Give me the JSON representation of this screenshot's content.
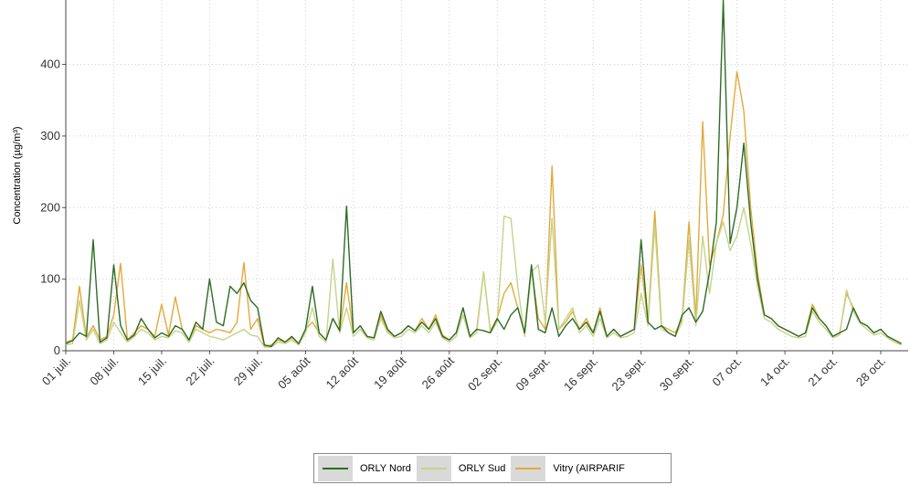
{
  "chart_data": {
    "type": "line",
    "title": "",
    "xlabel": "",
    "ylabel": "Concentration (µg/m³)",
    "ylim": [
      0,
      490
    ],
    "yticks": [
      0,
      100,
      200,
      300,
      400
    ],
    "xlim_days": [
      0,
      123
    ],
    "xtick_labels": [
      "01 juil.",
      "08 juil.",
      "15 juil.",
      "22 juil.",
      "29 juil.",
      "05 août",
      "12 août",
      "19 août",
      "26 août",
      "02 sept.",
      "09 sept.",
      "16 sept.",
      "23 sept.",
      "30 sept.",
      "07 oct.",
      "14 oct.",
      "21 oct.",
      "28 oct."
    ],
    "grid": true,
    "legend_position": "bottom",
    "series": [
      {
        "name": "ORLY Nord",
        "color": "#2e6b26",
        "x": [
          "01 juil.",
          "02 juil.",
          "03 juil.",
          "04 juil.",
          "05 juil.",
          "06 juil.",
          "07 juil.",
          "08 juil.",
          "09 juil.",
          "10 juil.",
          "11 juil.",
          "12 juil.",
          "13 juil.",
          "14 juil.",
          "15 juil.",
          "16 juil.",
          "17 juil.",
          "18 juil.",
          "19 juil.",
          "20 juil.",
          "21 juil.",
          "22 juil.",
          "23 juil.",
          "24 juil.",
          "25 juil.",
          "26 juil.",
          "27 juil.",
          "28 juil.",
          "29 juil.",
          "30 juil.",
          "31 juil.",
          "01 août",
          "02 août",
          "03 août",
          "04 août",
          "05 août",
          "06 août",
          "07 août",
          "08 août",
          "09 août",
          "10 août",
          "11 août",
          "12 août",
          "13 août",
          "14 août",
          "15 août",
          "16 août",
          "17 août",
          "18 août",
          "19 août",
          "20 août",
          "21 août",
          "22 août",
          "23 août",
          "24 août",
          "25 août",
          "26 août",
          "27 août",
          "28 août",
          "29 août",
          "30 août",
          "31 août",
          "01 sept.",
          "02 sept.",
          "03 sept.",
          "04 sept.",
          "05 sept.",
          "06 sept.",
          "07 sept.",
          "08 sept.",
          "09 sept.",
          "10 sept.",
          "11 sept.",
          "12 sept.",
          "13 sept.",
          "14 sept.",
          "15 sept.",
          "16 sept.",
          "17 sept.",
          "18 sept.",
          "19 sept.",
          "20 sept.",
          "21 sept.",
          "22 sept.",
          "23 sept.",
          "24 sept.",
          "25 sept.",
          "26 sept.",
          "27 sept.",
          "28 sept.",
          "29 sept.",
          "30 sept.",
          "01 oct.",
          "02 oct.",
          "03 oct.",
          "04 oct.",
          "05 oct.",
          "06 oct.",
          "07 oct.",
          "08 oct.",
          "09 oct.",
          "10 oct.",
          "11 oct.",
          "12 oct.",
          "13 oct.",
          "14 oct.",
          "15 oct.",
          "16 oct.",
          "17 oct.",
          "18 oct.",
          "19 oct.",
          "20 oct.",
          "21 oct.",
          "22 oct.",
          "23 oct.",
          "24 oct.",
          "25 oct.",
          "26 oct.",
          "27 oct.",
          "28 oct.",
          "29 oct.",
          "30 oct.",
          "31 oct."
        ],
        "values": [
          10,
          14,
          25,
          20,
          155,
          12,
          18,
          120,
          35,
          15,
          22,
          45,
          30,
          18,
          25,
          20,
          35,
          30,
          15,
          40,
          30,
          100,
          40,
          35,
          90,
          80,
          95,
          70,
          60,
          8,
          6,
          18,
          12,
          20,
          10,
          30,
          90,
          25,
          15,
          45,
          28,
          202,
          25,
          35,
          20,
          18,
          55,
          30,
          20,
          25,
          35,
          28,
          40,
          30,
          45,
          20,
          15,
          25,
          60,
          20,
          30,
          28,
          25,
          45,
          30,
          50,
          60,
          25,
          120,
          30,
          25,
          60,
          20,
          35,
          45,
          30,
          40,
          25,
          55,
          20,
          30,
          20,
          25,
          30,
          155,
          40,
          30,
          35,
          25,
          20,
          50,
          60,
          40,
          55,
          110,
          180,
          490,
          150,
          200,
          290,
          180,
          100,
          50,
          45,
          35,
          30,
          25,
          20,
          25,
          60,
          45,
          35,
          20,
          25,
          30,
          60,
          40,
          35,
          25,
          30,
          20,
          15,
          10
        ]
      },
      {
        "name": "ORLY Sud",
        "color": "#c4d48a",
        "x": [
          "01 juil.",
          "02 juil.",
          "03 juil.",
          "04 juil.",
          "05 juil.",
          "06 juil.",
          "07 juil.",
          "08 juil.",
          "09 juil.",
          "10 juil.",
          "11 juil.",
          "12 juil.",
          "13 juil.",
          "14 juil.",
          "15 juil.",
          "16 juil.",
          "17 juil.",
          "18 juil.",
          "19 juil.",
          "20 juil.",
          "21 juil.",
          "22 juil.",
          "23 juil.",
          "24 juil.",
          "25 juil.",
          "26 juil.",
          "27 juil.",
          "28 juil.",
          "29 juil.",
          "30 juil.",
          "31 juil.",
          "01 août",
          "02 août",
          "03 août",
          "04 août",
          "05 août",
          "06 août",
          "07 août",
          "08 août",
          "09 août",
          "10 août",
          "11 août",
          "12 août",
          "13 août",
          "14 août",
          "15 août",
          "16 août",
          "17 août",
          "18 août",
          "19 août",
          "20 août",
          "21 août",
          "22 août",
          "23 août",
          "24 août",
          "25 août",
          "26 août",
          "27 août",
          "28 août",
          "29 août",
          "30 août",
          "31 août",
          "01 sept.",
          "02 sept.",
          "03 sept.",
          "04 sept.",
          "05 sept.",
          "06 sept.",
          "07 sept.",
          "08 sept.",
          "09 sept.",
          "10 sept.",
          "11 sept.",
          "12 sept.",
          "13 sept.",
          "14 sept.",
          "15 sept.",
          "16 sept.",
          "17 sept.",
          "18 sept.",
          "19 sept.",
          "20 sept.",
          "21 sept.",
          "22 sept.",
          "23 sept.",
          "24 sept.",
          "25 sept.",
          "26 sept.",
          "27 sept.",
          "28 sept.",
          "29 sept.",
          "30 sept.",
          "01 oct.",
          "02 oct.",
          "03 oct.",
          "04 oct.",
          "05 oct.",
          "06 oct.",
          "07 oct.",
          "08 oct.",
          "09 oct.",
          "10 oct.",
          "11 oct.",
          "12 oct.",
          "13 oct.",
          "14 oct.",
          "15 oct.",
          "16 oct.",
          "17 oct.",
          "18 oct.",
          "19 oct.",
          "20 oct.",
          "21 oct.",
          "22 oct.",
          "23 oct.",
          "24 oct.",
          "25 oct.",
          "26 oct.",
          "27 oct.",
          "28 oct.",
          "29 oct.",
          "30 oct.",
          "31 oct."
        ],
        "values": [
          8,
          10,
          70,
          15,
          30,
          10,
          15,
          40,
          25,
          12,
          20,
          30,
          25,
          15,
          20,
          18,
          28,
          25,
          12,
          30,
          25,
          20,
          18,
          15,
          20,
          25,
          30,
          22,
          20,
          5,
          5,
          12,
          10,
          15,
          8,
          25,
          60,
          20,
          12,
          128,
          25,
          60,
          20,
          30,
          18,
          15,
          45,
          25,
          18,
          20,
          30,
          25,
          35,
          25,
          40,
          18,
          12,
          20,
          50,
          18,
          25,
          110,
          25,
          40,
          188,
          185,
          90,
          20,
          110,
          120,
          40,
          185,
          30,
          45,
          60,
          25,
          35,
          20,
          45,
          18,
          25,
          18,
          20,
          25,
          80,
          35,
          175,
          30,
          25,
          20,
          40,
          155,
          35,
          160,
          80,
          150,
          180,
          140,
          160,
          200,
          150,
          90,
          45,
          40,
          30,
          25,
          20,
          18,
          20,
          55,
          40,
          30,
          18,
          22,
          85,
          55,
          38,
          30,
          22,
          25,
          18,
          12,
          8
        ]
      },
      {
        "name": "Vitry (AIRPARIF",
        "color": "#e3a93a",
        "x": [
          "01 juil.",
          "02 juil.",
          "03 juil.",
          "04 juil.",
          "05 juil.",
          "06 juil.",
          "07 juil.",
          "08 juil.",
          "09 juil.",
          "10 juil.",
          "11 juil.",
          "12 juil.",
          "13 juil.",
          "14 juil.",
          "15 juil.",
          "16 juil.",
          "17 juil.",
          "18 juil.",
          "19 juil.",
          "20 juil.",
          "21 juil.",
          "22 juil.",
          "23 juil.",
          "24 juil.",
          "25 juil.",
          "26 juil.",
          "27 juil.",
          "28 juil.",
          "29 juil.",
          "30 juil.",
          "31 juil.",
          "01 août",
          "02 août",
          "03 août",
          "04 août",
          "05 août",
          "06 août",
          "07 août",
          "08 août",
          "09 août",
          "10 août",
          "11 août",
          "12 août",
          "13 août",
          "14 août",
          "15 août",
          "16 août",
          "17 août",
          "18 août",
          "19 août",
          "20 août",
          "21 août",
          "22 août",
          "23 août",
          "24 août",
          "25 août",
          "26 août",
          "27 août",
          "28 août",
          "29 août",
          "30 août",
          "31 août",
          "01 sept.",
          "02 sept.",
          "03 sept.",
          "04 sept.",
          "05 sept.",
          "06 sept.",
          "07 sept.",
          "08 sept.",
          "09 sept.",
          "10 sept.",
          "11 sept.",
          "12 sept.",
          "13 sept.",
          "14 sept.",
          "15 sept.",
          "16 sept.",
          "17 sept.",
          "18 sept.",
          "19 sept.",
          "20 sept.",
          "21 sept.",
          "22 sept.",
          "23 sept.",
          "24 sept.",
          "25 sept.",
          "26 sept.",
          "27 sept.",
          "28 sept.",
          "29 sept.",
          "30 sept.",
          "01 oct.",
          "02 oct.",
          "03 oct.",
          "04 oct.",
          "05 oct.",
          "06 oct.",
          "07 oct.",
          "08 oct.",
          "09 oct.",
          "10 oct.",
          "11 oct.",
          "12 oct.",
          "13 oct.",
          "14 oct.",
          "15 oct.",
          "16 oct.",
          "17 oct.",
          "18 oct.",
          "19 oct.",
          "20 oct.",
          "21 oct.",
          "22 oct.",
          "23 oct.",
          "24 oct.",
          "25 oct.",
          "26 oct.",
          "27 oct.",
          "28 oct.",
          "29 oct.",
          "30 oct.",
          "31 oct."
        ],
        "values": [
          12,
          15,
          90,
          18,
          35,
          15,
          20,
          50,
          122,
          15,
          25,
          35,
          30,
          20,
          65,
          22,
          75,
          30,
          15,
          35,
          30,
          25,
          30,
          28,
          25,
          40,
          123,
          30,
          45,
          6,
          8,
          15,
          12,
          18,
          10,
          30,
          40,
          25,
          15,
          45,
          28,
          95,
          25,
          35,
          20,
          18,
          50,
          28,
          20,
          25,
          35,
          28,
          45,
          30,
          50,
          22,
          15,
          25,
          60,
          20,
          30,
          110,
          28,
          45,
          80,
          95,
          60,
          25,
          115,
          45,
          30,
          258,
          30,
          40,
          55,
          30,
          45,
          25,
          60,
          20,
          30,
          20,
          25,
          30,
          120,
          40,
          195,
          35,
          30,
          25,
          45,
          180,
          45,
          320,
          120,
          150,
          190,
          300,
          390,
          335,
          200,
          110,
          50,
          45,
          35,
          30,
          25,
          20,
          25,
          65,
          45,
          35,
          20,
          25,
          80,
          60,
          40,
          35,
          25,
          30,
          20,
          15,
          10
        ]
      }
    ]
  }
}
